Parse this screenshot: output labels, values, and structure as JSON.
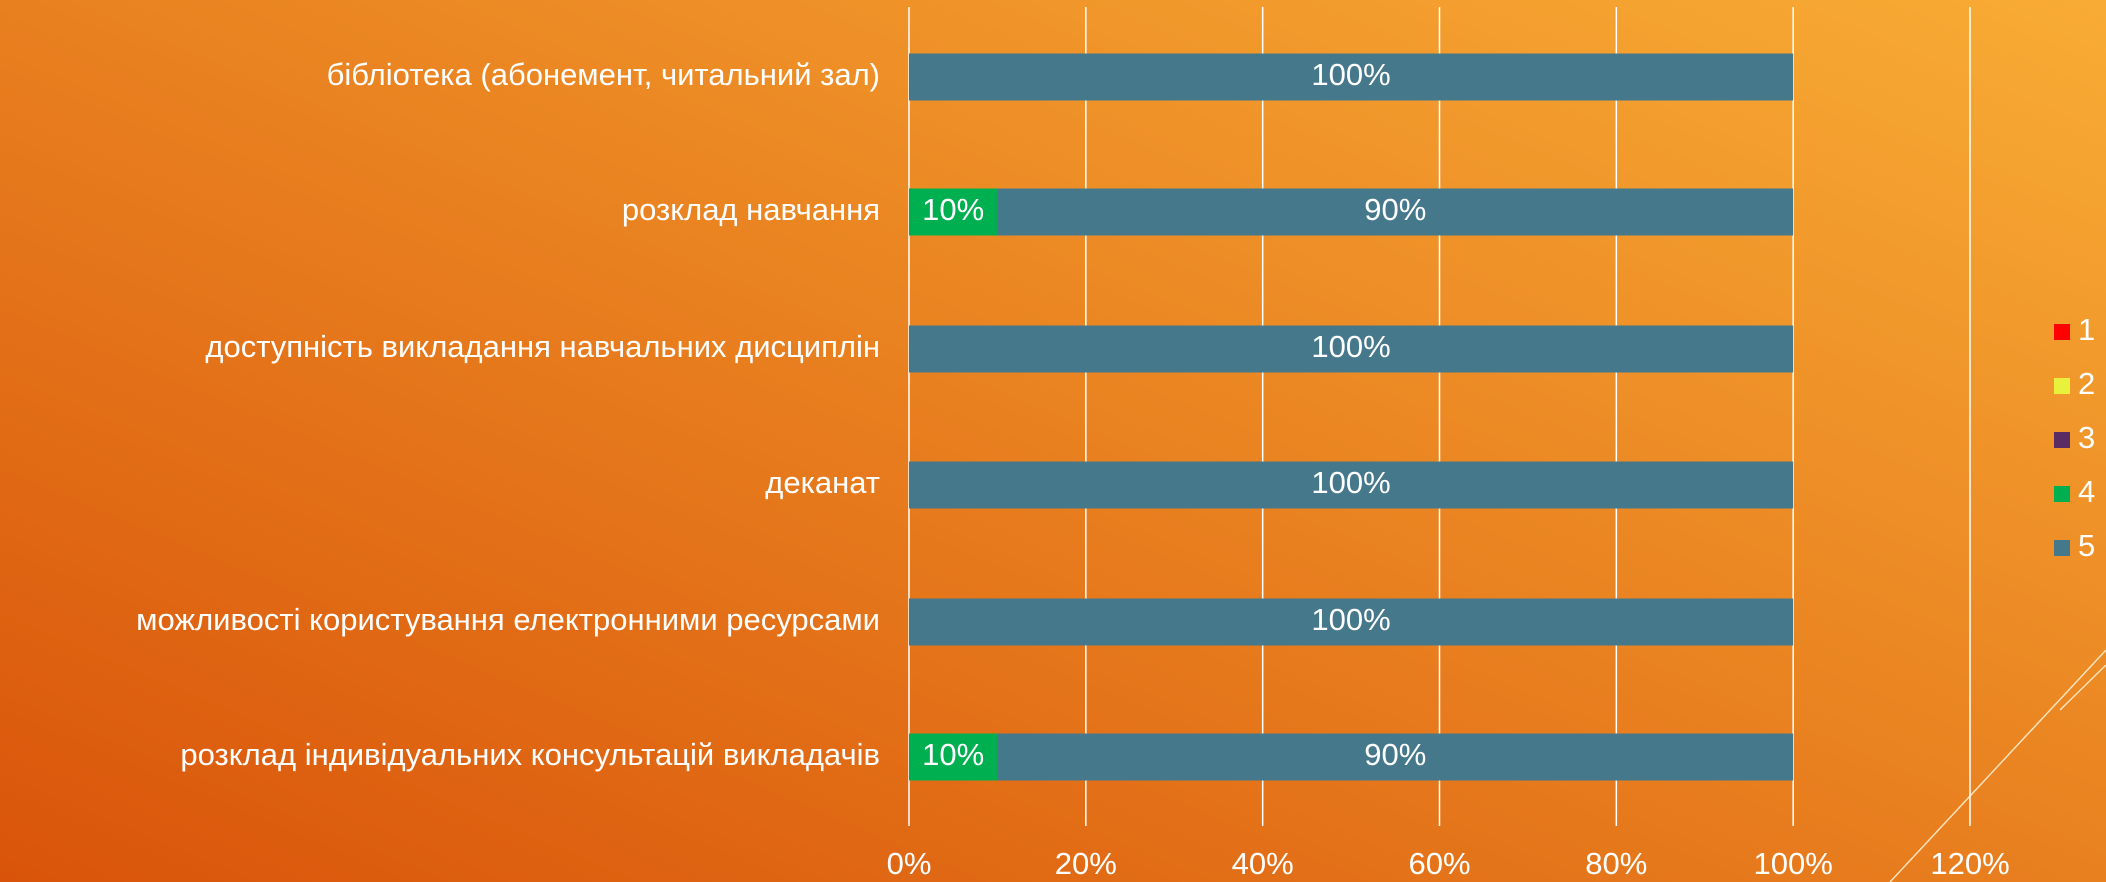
{
  "chart_data": {
    "type": "stacked_bar_horizontal",
    "categories": [
      "бібліотека (абонемент, читальний зал)",
      "розклад навчання",
      "доступність викладання навчальних дисциплін ",
      "деканат",
      "можливості користування електронними ресурсами ",
      "розклад індивідуальних консультацій викладачів"
    ],
    "series": [
      {
        "name": "1",
        "color": "#ff0000",
        "values": [
          0,
          0,
          0,
          0,
          0,
          0
        ]
      },
      {
        "name": "2",
        "color": "#e8f23c",
        "values": [
          0,
          0,
          0,
          0,
          0,
          0
        ]
      },
      {
        "name": "3",
        "color": "#5b2c63",
        "values": [
          0,
          0,
          0,
          0,
          0,
          0
        ]
      },
      {
        "name": "4",
        "color": "#00b050",
        "values": [
          0,
          10,
          0,
          0,
          0,
          10
        ],
        "value_labels": [
          null,
          "10%",
          null,
          null,
          null,
          "10%"
        ]
      },
      {
        "name": "5",
        "color": "#46788c",
        "values": [
          100,
          90,
          100,
          100,
          100,
          90
        ],
        "value_labels": [
          "100%",
          "90%",
          "100%",
          "100%",
          "100%",
          "90%"
        ]
      }
    ],
    "xlim": [
      0,
      120
    ],
    "xticks": [
      {
        "value": 0,
        "label": "0%"
      },
      {
        "value": 20,
        "label": "20%"
      },
      {
        "value": 40,
        "label": "40%"
      },
      {
        "value": 60,
        "label": "60%"
      },
      {
        "value": 80,
        "label": "80%"
      },
      {
        "value": 100,
        "label": "100%"
      },
      {
        "value": 120,
        "label": "120%"
      }
    ],
    "grid": true,
    "legend": "right"
  }
}
